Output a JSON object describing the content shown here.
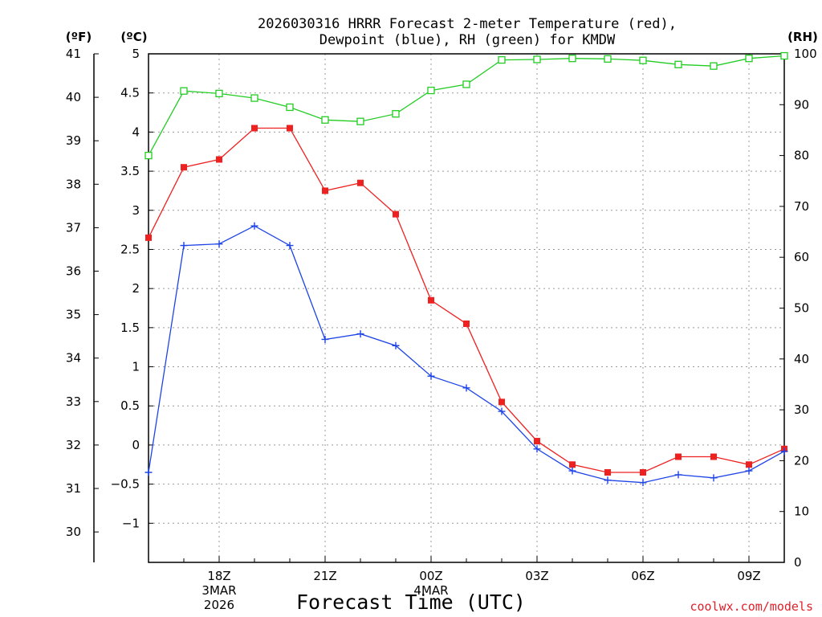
{
  "chart_data": {
    "type": "line",
    "title_line1": "2026030316 HRRR Forecast 2-meter Temperature (red),",
    "title_line2": "Dewpoint (blue), RH (green) for KMDW",
    "unit_f": "(ºF)",
    "unit_c": "(ºC)",
    "unit_rh": "(RH)",
    "xlabel": "Forecast Time (UTC)",
    "credit": "coolwx.com/models",
    "x_hours": [
      16,
      17,
      18,
      19,
      20,
      21,
      22,
      23,
      24,
      25,
      26,
      27,
      28,
      29,
      30,
      31,
      32,
      33,
      34
    ],
    "x_range": [
      16,
      34
    ],
    "x_ticks": [
      {
        "x": 18,
        "lines": [
          "18Z",
          "3MAR",
          "2026"
        ]
      },
      {
        "x": 21,
        "lines": [
          "21Z"
        ]
      },
      {
        "x": 24,
        "lines": [
          "00Z",
          "4MAR"
        ]
      },
      {
        "x": 27,
        "lines": [
          "03Z"
        ]
      },
      {
        "x": 30,
        "lines": [
          "06Z"
        ]
      },
      {
        "x": 33,
        "lines": [
          "09Z"
        ]
      }
    ],
    "c_range": [
      -1.5,
      5.0
    ],
    "c_ticks": [
      -1,
      -0.5,
      0,
      0.5,
      1,
      1.5,
      2,
      2.5,
      3,
      3.5,
      4,
      4.5,
      5
    ],
    "c_tick_labels": [
      "−1",
      "−0.5",
      "0",
      "0.5",
      "1",
      "1.5",
      "2",
      "2.5",
      "3",
      "3.5",
      "4",
      "4.5",
      "5"
    ],
    "f_ticks": [
      30,
      31,
      32,
      33,
      34,
      35,
      36,
      37,
      38,
      39,
      40,
      41
    ],
    "rh_range": [
      0,
      100
    ],
    "rh_ticks": [
      0,
      10,
      20,
      30,
      40,
      50,
      60,
      70,
      80,
      90,
      100
    ],
    "series": [
      {
        "name": "2-meter Temperature",
        "color": "#ee2020",
        "axis": "c",
        "marker": "filled-square",
        "values": [
          2.65,
          3.55,
          3.65,
          4.05,
          4.05,
          3.25,
          3.35,
          2.95,
          1.85,
          1.55,
          0.55,
          0.05,
          -0.25,
          -0.35,
          -0.35,
          -0.15,
          -0.15,
          -0.25,
          -0.05
        ]
      },
      {
        "name": "Dewpoint",
        "color": "#1e44e6",
        "axis": "c",
        "marker": "plus",
        "values": [
          -0.35,
          2.55,
          2.57,
          2.8,
          2.55,
          1.35,
          1.42,
          1.27,
          0.88,
          0.73,
          0.43,
          -0.05,
          -0.33,
          -0.45,
          -0.48,
          -0.38,
          -0.42,
          -0.33,
          -0.08
        ]
      },
      {
        "name": "RH",
        "color": "#22cc22",
        "axis": "rh",
        "marker": "open-square",
        "values": [
          80,
          92.7,
          92.2,
          91.3,
          89.5,
          87,
          86.7,
          88.2,
          92.8,
          94,
          98.8,
          98.9,
          99.1,
          99,
          98.7,
          97.9,
          97.6,
          99.1,
          99.6
        ]
      }
    ]
  }
}
